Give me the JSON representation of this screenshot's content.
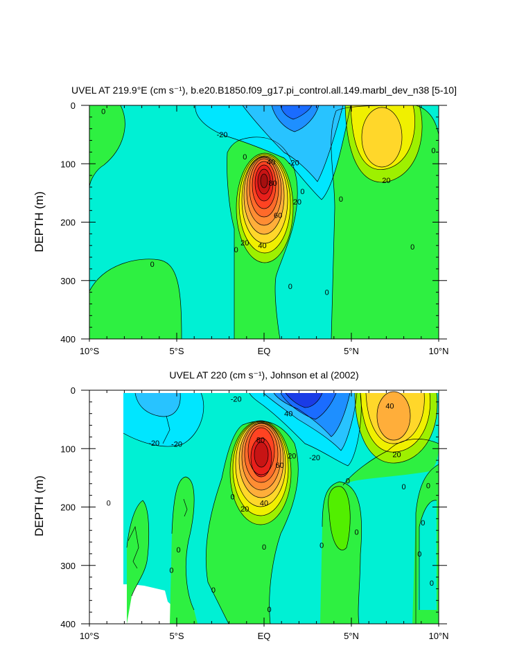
{
  "chart_data": [
    {
      "type": "contour",
      "title": "UVEL AT 219.9°E (cm s⁻¹), b.e20.B1850.f09_g17.pi_control.all.149.marbl_dev_n38 [5-10]",
      "ylabel": "DEPTH (m)",
      "xlabel": "",
      "xlim": [
        -10,
        10
      ],
      "ylim": [
        400,
        0
      ],
      "x_ticks": [
        -10,
        -5,
        0,
        5,
        10
      ],
      "x_tick_labels": [
        "10°S",
        "5°S",
        "EQ",
        "5°N",
        "10°N"
      ],
      "y_ticks": [
        0,
        100,
        200,
        300,
        400
      ],
      "y_tick_labels": [
        "0",
        "100",
        "200",
        "300",
        "400"
      ],
      "contour_interval": 10,
      "levels_range": [
        -40,
        90
      ],
      "features": [
        {
          "name": "undercurrent core",
          "lat": 0,
          "depth": 150,
          "value": 90
        },
        {
          "name": "westward surface jet",
          "lat": 2.5,
          "depth": 20,
          "value": -40
        },
        {
          "name": "NECC core",
          "lat": 7,
          "depth": 50,
          "value": 30
        }
      ],
      "contour_labels": [
        {
          "text": "0",
          "lat": -9.2,
          "depth": 10
        },
        {
          "text": "-20",
          "lat": -2.4,
          "depth": 50
        },
        {
          "text": "0",
          "lat": -1.1,
          "depth": 88
        },
        {
          "text": "40",
          "lat": 0.4,
          "depth": 97
        },
        {
          "text": "80",
          "lat": 0.5,
          "depth": 133
        },
        {
          "text": "-20",
          "lat": 1.7,
          "depth": 98
        },
        {
          "text": "0",
          "lat": 2.2,
          "depth": 147
        },
        {
          "text": "20",
          "lat": 1.9,
          "depth": 165
        },
        {
          "text": "60",
          "lat": 0.8,
          "depth": 188
        },
        {
          "text": "20",
          "lat": -1.1,
          "depth": 235
        },
        {
          "text": "40",
          "lat": -0.1,
          "depth": 240
        },
        {
          "text": "0",
          "lat": -1.6,
          "depth": 247
        },
        {
          "text": "0",
          "lat": -6.4,
          "depth": 272
        },
        {
          "text": "0",
          "lat": 1.5,
          "depth": 310
        },
        {
          "text": "0",
          "lat": 3.6,
          "depth": 320
        },
        {
          "text": "0",
          "lat": 4.4,
          "depth": 160
        },
        {
          "text": "20",
          "lat": 7.0,
          "depth": 128
        },
        {
          "text": "0",
          "lat": 8.5,
          "depth": 242
        },
        {
          "text": "0",
          "lat": 9.7,
          "depth": 77
        }
      ]
    },
    {
      "type": "contour",
      "title": "UVEL AT 220 (cm s⁻¹), Johnson et al (2002)",
      "ylabel": "DEPTH (m)",
      "xlabel": "",
      "xlim": [
        -10,
        10
      ],
      "ylim": [
        400,
        0
      ],
      "x_ticks": [
        -10,
        -5,
        0,
        5,
        10
      ],
      "x_tick_labels": [
        "10°S",
        "5°S",
        "EQ",
        "5°N",
        "10°N"
      ],
      "y_ticks": [
        0,
        100,
        200,
        300,
        400
      ],
      "y_tick_labels": [
        "0",
        "100",
        "200",
        "300",
        "400"
      ],
      "contour_interval": 10,
      "levels_range": [
        -50,
        90
      ],
      "features": [
        {
          "name": "undercurrent core",
          "lat": -0.1,
          "depth": 110,
          "value": 90
        },
        {
          "name": "westward surface jet",
          "lat": 2,
          "depth": 10,
          "value": -50
        },
        {
          "name": "NECC core",
          "lat": 7,
          "depth": 50,
          "value": 40
        }
      ],
      "contour_labels": [
        {
          "text": "-20",
          "lat": -1.6,
          "depth": 15
        },
        {
          "text": "-20",
          "lat": -6.3,
          "depth": 90
        },
        {
          "text": "-20",
          "lat": -5.0,
          "depth": 92
        },
        {
          "text": "80",
          "lat": -0.2,
          "depth": 85
        },
        {
          "text": "40",
          "lat": 1.4,
          "depth": 40
        },
        {
          "text": "60",
          "lat": 0.9,
          "depth": 128
        },
        {
          "text": "20",
          "lat": 1.6,
          "depth": 112
        },
        {
          "text": "-20",
          "lat": 2.9,
          "depth": 115
        },
        {
          "text": "40",
          "lat": 7.2,
          "depth": 27
        },
        {
          "text": "20",
          "lat": 7.6,
          "depth": 110
        },
        {
          "text": "0",
          "lat": 4.8,
          "depth": 155
        },
        {
          "text": "0",
          "lat": 8.0,
          "depth": 165
        },
        {
          "text": "0",
          "lat": -1.8,
          "depth": 182
        },
        {
          "text": "40",
          "lat": 0.0,
          "depth": 193
        },
        {
          "text": "20",
          "lat": -1.1,
          "depth": 203
        },
        {
          "text": "0",
          "lat": -8.9,
          "depth": 193
        },
        {
          "text": "0",
          "lat": 9.4,
          "depth": 163
        },
        {
          "text": "0",
          "lat": 9.1,
          "depth": 227
        },
        {
          "text": "0",
          "lat": 5.3,
          "depth": 243
        },
        {
          "text": "0",
          "lat": 3.3,
          "depth": 265
        },
        {
          "text": "0",
          "lat": 0.0,
          "depth": 268
        },
        {
          "text": "0",
          "lat": -4.9,
          "depth": 273
        },
        {
          "text": "0",
          "lat": 8.9,
          "depth": 280
        },
        {
          "text": "0",
          "lat": -5.3,
          "depth": 308
        },
        {
          "text": "0",
          "lat": 9.6,
          "depth": 330
        },
        {
          "text": "0",
          "lat": -2.9,
          "depth": 342
        },
        {
          "text": "0",
          "lat": 0.3,
          "depth": 375
        }
      ]
    }
  ]
}
